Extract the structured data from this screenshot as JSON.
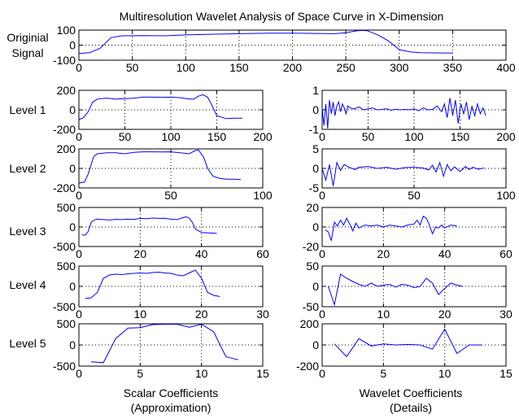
{
  "title": "Multiresolution Wavelet Analysis of Space Curve in X-Dimension",
  "chart_data": [
    {
      "type": "line",
      "row_label": [
        "Originial",
        "Signal"
      ],
      "xlim": [
        0,
        400
      ],
      "ylim": [
        -100,
        100
      ],
      "xticks": [
        0,
        50,
        100,
        150,
        200,
        250,
        300,
        350,
        400
      ],
      "yticks": [
        -100,
        0,
        100
      ],
      "series": [
        {
          "x": [
            0,
            10,
            20,
            30,
            40,
            60,
            80,
            100,
            120,
            150,
            180,
            200,
            220,
            240,
            250,
            260,
            265,
            270,
            280,
            290,
            300,
            310,
            320,
            340,
            350
          ],
          "y": [
            -55,
            -50,
            -20,
            50,
            62,
            64,
            62,
            68,
            72,
            76,
            80,
            80,
            78,
            76,
            82,
            95,
            98,
            96,
            68,
            28,
            -30,
            -45,
            -50,
            -52,
            -52
          ],
          "color": "#0000ff"
        }
      ]
    },
    {
      "type": "line",
      "row_label": [
        "Level 1"
      ],
      "xlim": [
        0,
        200
      ],
      "ylim": [
        -200,
        200
      ],
      "xticks": [
        0,
        50,
        100,
        150,
        200
      ],
      "yticks": [
        -200,
        0,
        200
      ],
      "series": [
        {
          "x": [
            0,
            5,
            10,
            15,
            20,
            30,
            40,
            50,
            60,
            70,
            80,
            90,
            100,
            110,
            120,
            125,
            130,
            135,
            140,
            145,
            150,
            160,
            170,
            178
          ],
          "y": [
            -100,
            -80,
            -20,
            80,
            110,
            120,
            110,
            115,
            120,
            130,
            130,
            128,
            130,
            125,
            110,
            110,
            140,
            155,
            130,
            40,
            -60,
            -90,
            -85,
            -85
          ],
          "color": "#0000ff"
        }
      ]
    },
    {
      "type": "line",
      "row_label": [
        "Level 1"
      ],
      "xlim": [
        0,
        200
      ],
      "ylim": [
        -1,
        1
      ],
      "xticks": [
        0,
        50,
        100,
        150,
        200
      ],
      "yticks": [
        -1,
        0,
        1
      ],
      "series": [
        {
          "x": [
            0,
            2,
            4,
            6,
            8,
            10,
            12,
            14,
            16,
            18,
            20,
            22,
            24,
            26,
            28,
            30,
            35,
            40,
            45,
            50,
            55,
            60,
            65,
            70,
            75,
            80,
            85,
            90,
            95,
            100,
            105,
            110,
            115,
            120,
            125,
            130,
            133,
            136,
            139,
            142,
            145,
            148,
            151,
            154,
            157,
            160,
            163,
            166,
            169,
            172,
            175,
            178
          ],
          "y": [
            0.1,
            -0.8,
            0.3,
            -0.95,
            0.5,
            -0.2,
            0.4,
            -0.3,
            0.2,
            0.4,
            -0.1,
            0.3,
            0.1,
            -0.2,
            0.2,
            0.1,
            0.05,
            0.15,
            0.0,
            0.05,
            0.1,
            0.0,
            0.02,
            0.05,
            -0.02,
            0.03,
            0.0,
            0.02,
            0.0,
            0.05,
            -0.05,
            0.1,
            0.0,
            0.02,
            0.2,
            -0.1,
            0.3,
            -0.4,
            0.6,
            -0.3,
            0.5,
            -0.7,
            0.3,
            -0.2,
            0.4,
            -0.5,
            0.2,
            -0.3,
            0.3,
            -0.2,
            0.1,
            -0.3
          ],
          "color": "#0000ff"
        }
      ]
    },
    {
      "type": "line",
      "row_label": [
        "Level 2"
      ],
      "xlim": [
        0,
        100
      ],
      "ylim": [
        -200,
        200
      ],
      "xticks": [
        0,
        50,
        100
      ],
      "yticks": [
        -200,
        0,
        200
      ],
      "series": [
        {
          "x": [
            0,
            3,
            5,
            8,
            10,
            15,
            20,
            25,
            30,
            35,
            40,
            45,
            50,
            55,
            60,
            63,
            65,
            68,
            70,
            73,
            76,
            80,
            85,
            88
          ],
          "y": [
            -150,
            -140,
            -60,
            120,
            150,
            160,
            160,
            150,
            165,
            170,
            170,
            168,
            170,
            160,
            150,
            180,
            190,
            110,
            0,
            -80,
            -100,
            -110,
            -110,
            -115
          ],
          "color": "#0000ff"
        }
      ]
    },
    {
      "type": "line",
      "row_label": [
        "Level 2"
      ],
      "xlim": [
        0,
        100
      ],
      "ylim": [
        -5,
        5
      ],
      "xticks": [
        0,
        50,
        100
      ],
      "yticks": [
        -5,
        0,
        5
      ],
      "series": [
        {
          "x": [
            0,
            2,
            4,
            6,
            8,
            10,
            12,
            15,
            18,
            20,
            25,
            30,
            35,
            40,
            45,
            50,
            55,
            58,
            60,
            62,
            64,
            66,
            68,
            70,
            72,
            75,
            78,
            80,
            82,
            85,
            88
          ],
          "y": [
            0,
            -3,
            1,
            -4.5,
            1.5,
            -0.5,
            1,
            0.2,
            -0.3,
            0.3,
            0.5,
            0.0,
            0.3,
            -0.2,
            0.2,
            0.3,
            0.1,
            -0.4,
            0.8,
            -0.9,
            1.5,
            -2.0,
            1.0,
            -0.6,
            0.4,
            -0.8,
            0.5,
            -0.3,
            0.3,
            -0.2,
            0.1
          ],
          "color": "#0000ff"
        }
      ]
    },
    {
      "type": "line",
      "row_label": [
        "Level 3"
      ],
      "xlim": [
        0,
        60
      ],
      "ylim": [
        -500,
        500
      ],
      "xticks": [
        0,
        20,
        40,
        60
      ],
      "yticks": [
        -500,
        0,
        500
      ],
      "series": [
        {
          "x": [
            1,
            2,
            3,
            4,
            5,
            6,
            8,
            10,
            12,
            14,
            16,
            18,
            20,
            22,
            24,
            26,
            28,
            30,
            32,
            34,
            35,
            36,
            37,
            38,
            40,
            42,
            45
          ],
          "y": [
            -200,
            -210,
            -120,
            120,
            180,
            200,
            190,
            180,
            195,
            190,
            200,
            195,
            220,
            210,
            230,
            220,
            225,
            200,
            190,
            240,
            260,
            230,
            120,
            -50,
            -140,
            -150,
            -160
          ],
          "color": "#0000ff"
        }
      ]
    },
    {
      "type": "line",
      "row_label": [
        "Level 3"
      ],
      "xlim": [
        0,
        60
      ],
      "ylim": [
        -20,
        20
      ],
      "xticks": [
        0,
        20,
        40,
        60
      ],
      "yticks": [
        -20,
        0,
        20
      ],
      "series": [
        {
          "x": [
            1,
            2,
            3,
            4,
            5,
            6,
            7,
            8,
            9,
            10,
            11,
            12,
            14,
            16,
            18,
            20,
            22,
            24,
            26,
            28,
            30,
            31,
            32,
            33,
            34,
            35,
            36,
            37,
            38,
            39,
            40,
            42,
            44
          ],
          "y": [
            -3,
            -5,
            -14,
            5,
            1,
            7,
            2,
            9,
            3,
            -4,
            4,
            -1,
            2,
            1,
            2,
            0,
            2,
            1,
            0,
            2,
            3,
            7,
            2,
            11,
            9,
            2,
            -7,
            0,
            -1,
            2,
            -1,
            2,
            1
          ],
          "color": "#0000ff"
        }
      ]
    },
    {
      "type": "line",
      "row_label": [
        "Level 4"
      ],
      "xlim": [
        0,
        30
      ],
      "ylim": [
        -500,
        500
      ],
      "xticks": [
        0,
        10,
        20,
        30
      ],
      "yticks": [
        -500,
        0,
        500
      ],
      "series": [
        {
          "x": [
            1,
            2,
            3,
            4,
            5,
            6,
            7,
            8,
            9,
            10,
            11,
            12,
            13,
            14,
            15,
            16,
            17,
            18,
            19,
            20,
            21,
            22,
            23
          ],
          "y": [
            -300,
            -280,
            -150,
            200,
            280,
            300,
            290,
            310,
            320,
            330,
            320,
            340,
            350,
            330,
            320,
            280,
            260,
            330,
            400,
            200,
            -150,
            -220,
            -250
          ],
          "color": "#0000ff"
        }
      ]
    },
    {
      "type": "line",
      "row_label": [
        "Level 4"
      ],
      "xlim": [
        0,
        30
      ],
      "ylim": [
        -50,
        50
      ],
      "xticks": [
        0,
        10,
        20,
        30
      ],
      "yticks": [
        -50,
        0,
        50
      ],
      "series": [
        {
          "x": [
            1,
            2,
            3,
            4,
            5,
            6,
            7,
            8,
            9,
            10,
            11,
            12,
            13,
            14,
            15,
            16,
            17,
            18,
            19,
            20,
            21,
            22,
            23
          ],
          "y": [
            0,
            -45,
            30,
            20,
            12,
            5,
            0,
            8,
            0,
            3,
            5,
            -2,
            5,
            3,
            -3,
            0,
            20,
            8,
            -20,
            -5,
            8,
            3,
            0
          ],
          "color": "#0000ff"
        }
      ]
    },
    {
      "type": "line",
      "row_label": [
        "Level 5"
      ],
      "xlim": [
        0,
        15
      ],
      "ylim": [
        -500,
        500
      ],
      "xticks": [
        0,
        5,
        10,
        15
      ],
      "yticks": [
        -500,
        0,
        500
      ],
      "series": [
        {
          "x": [
            1,
            2,
            3,
            4,
            5,
            6,
            7,
            8,
            9,
            10,
            11,
            12,
            13
          ],
          "y": [
            -400,
            -420,
            150,
            400,
            410,
            480,
            490,
            490,
            420,
            490,
            310,
            -280,
            -350
          ],
          "color": "#0000ff"
        }
      ]
    },
    {
      "type": "line",
      "row_label": [
        "Level 5"
      ],
      "xlim": [
        0,
        15
      ],
      "ylim": [
        -200,
        200
      ],
      "xticks": [
        0,
        5,
        10,
        15
      ],
      "yticks": [
        -200,
        0,
        200
      ],
      "series": [
        {
          "x": [
            1,
            2,
            3,
            4,
            5,
            6,
            7,
            8,
            9,
            10,
            11,
            12,
            13
          ],
          "y": [
            10,
            -110,
            60,
            -10,
            10,
            0,
            5,
            0,
            -40,
            150,
            -80,
            0,
            0
          ],
          "color": "#0000ff"
        }
      ]
    }
  ],
  "xlabel_left": [
    "Scalar Coefficients",
    "(Approximation)"
  ],
  "xlabel_right": [
    "Wavelet Coefficients",
    "(Details)"
  ]
}
